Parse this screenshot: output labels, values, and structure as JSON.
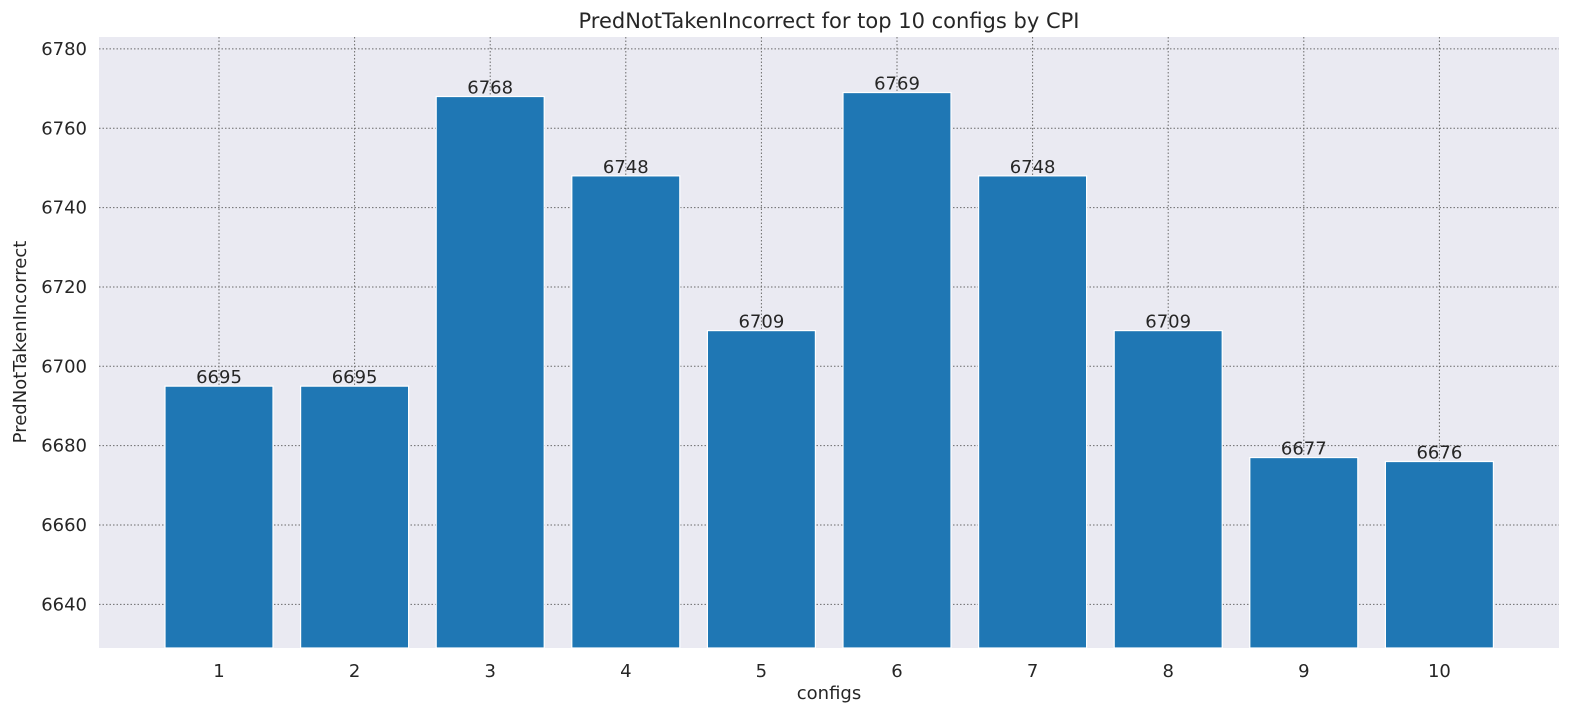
{
  "chart_data": {
    "type": "bar",
    "title": "PredNotTakenIncorrect for top 10 configs by CPI",
    "xlabel": "configs",
    "ylabel": "PredNotTakenIncorrect",
    "categories": [
      "1",
      "2",
      "3",
      "4",
      "5",
      "6",
      "7",
      "8",
      "9",
      "10"
    ],
    "values": [
      6695,
      6695,
      6768,
      6748,
      6709,
      6769,
      6748,
      6709,
      6677,
      6676
    ],
    "data_labels": [
      "6695",
      "6695",
      "6768",
      "6748",
      "6709",
      "6769",
      "6748",
      "6709",
      "6677",
      "6676"
    ],
    "ylim": [
      6629,
      6783
    ],
    "yticks": [
      6640,
      6660,
      6680,
      6700,
      6720,
      6740,
      6760,
      6780
    ],
    "ytick_labels": [
      "6640",
      "6660",
      "6680",
      "6700",
      "6720",
      "6740",
      "6760",
      "6780"
    ],
    "grid": true,
    "colors": {
      "bar": "#1f77b4",
      "plot_background": "#eaeaf2",
      "grid": "#6b6b6b",
      "text": "#262626"
    }
  }
}
